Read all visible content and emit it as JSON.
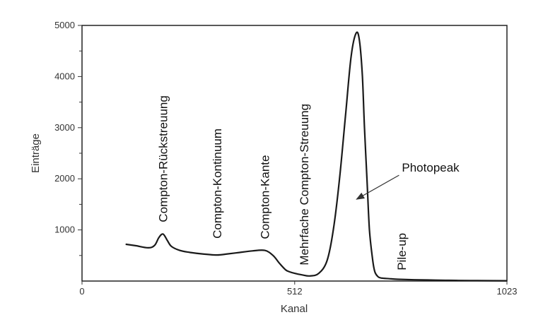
{
  "chart_data": {
    "type": "line",
    "title": "",
    "xlabel": "Kanal",
    "ylabel": "Einträge",
    "xlim": [
      0,
      1023
    ],
    "ylim": [
      0,
      5000
    ],
    "x_ticks": [
      0,
      512,
      1023
    ],
    "y_ticks": [
      1000,
      2000,
      3000,
      4000,
      5000
    ],
    "grid": false,
    "series": [
      {
        "x": [
          105,
          130,
          160,
          175,
          185,
          195,
          205,
          215,
          235,
          260,
          290,
          325,
          350,
          380,
          410,
          440,
          460,
          475,
          490,
          500,
          512,
          530,
          548,
          570,
          590,
          605,
          620,
          635,
          648,
          660,
          668,
          675,
          680,
          686,
          692,
          700,
          705,
          712,
          720,
          740,
          760,
          800,
          850,
          900,
          950,
          1023
        ],
        "y": [
          720,
          690,
          650,
          700,
          850,
          920,
          800,
          680,
          600,
          560,
          530,
          510,
          530,
          560,
          590,
          600,
          500,
          350,
          220,
          180,
          150,
          120,
          100,
          150,
          400,
          1000,
          2000,
          3300,
          4400,
          4850,
          4700,
          4000,
          3000,
          2000,
          1000,
          400,
          180,
          90,
          60,
          45,
          35,
          25,
          18,
          12,
          8,
          5
        ]
      }
    ],
    "annotations": [
      {
        "text": "Compton-Rückstreuung",
        "x": 205,
        "y": 1150,
        "rotation": -90
      },
      {
        "text": "Compton-Kontinuum",
        "x": 335,
        "y": 830,
        "rotation": -90
      },
      {
        "text": "Compton-Kante",
        "x": 450,
        "y": 820,
        "rotation": -90
      },
      {
        "text": "Mehrfache Compton-Streuung",
        "x": 545,
        "y": 310,
        "rotation": -90
      },
      {
        "text": "Pile-up",
        "x": 780,
        "y": 210,
        "rotation": -90
      },
      {
        "text": "Photopeak",
        "x": 770,
        "y": 2140,
        "rotation": 0,
        "arrow_to": [
          661,
          1600
        ]
      }
    ]
  }
}
